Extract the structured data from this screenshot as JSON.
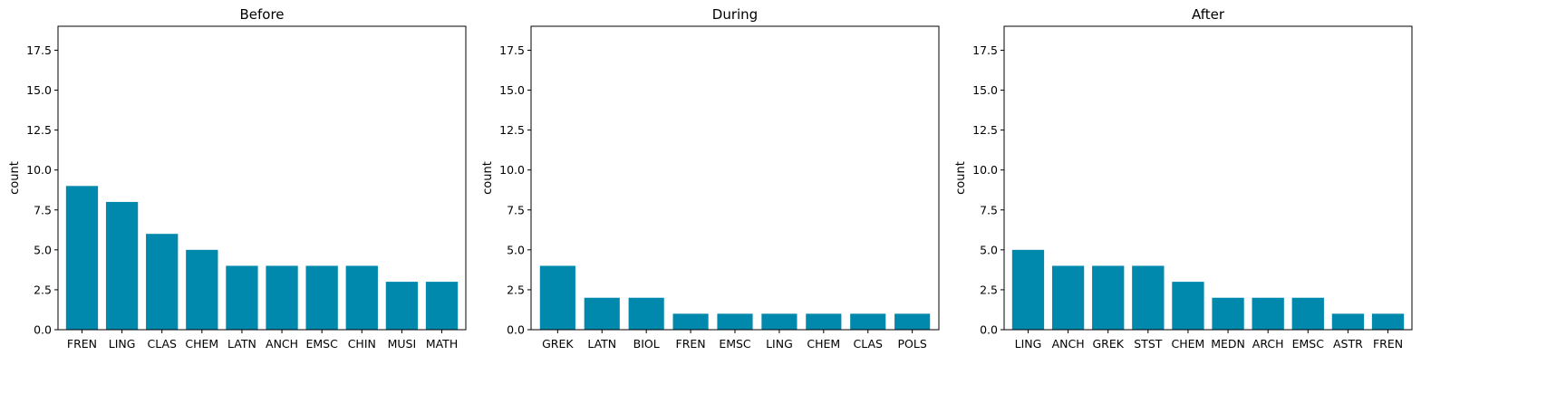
{
  "colors": {
    "bar": "#0088ad",
    "axis": "#000000",
    "background": "#ffffff"
  },
  "chart_data": [
    {
      "type": "bar",
      "title": "Before",
      "xlabel": "",
      "ylabel": "count",
      "ylim": [
        0,
        19
      ],
      "yticks": [
        "0.0",
        "2.5",
        "5.0",
        "7.5",
        "10.0",
        "12.5",
        "15.0",
        "17.5"
      ],
      "grid": false,
      "categories": [
        "FREN",
        "LING",
        "CLAS",
        "CHEM",
        "LATN",
        "ANCH",
        "EMSC",
        "CHIN",
        "MUSI",
        "MATH"
      ],
      "values": [
        9,
        8,
        6,
        5,
        4,
        4,
        4,
        4,
        3,
        3
      ]
    },
    {
      "type": "bar",
      "title": "During",
      "xlabel": "",
      "ylabel": "count",
      "ylim": [
        0,
        19
      ],
      "yticks": [
        "0.0",
        "2.5",
        "5.0",
        "7.5",
        "10.0",
        "12.5",
        "15.0",
        "17.5"
      ],
      "grid": false,
      "categories": [
        "GREK",
        "LATN",
        "BIOL",
        "FREN",
        "EMSC",
        "LING",
        "CHEM",
        "CLAS",
        "POLS"
      ],
      "values": [
        4,
        2,
        2,
        1,
        1,
        1,
        1,
        1,
        1
      ]
    },
    {
      "type": "bar",
      "title": "After",
      "xlabel": "",
      "ylabel": "count",
      "ylim": [
        0,
        19
      ],
      "yticks": [
        "0.0",
        "2.5",
        "5.0",
        "7.5",
        "10.0",
        "12.5",
        "15.0",
        "17.5"
      ],
      "grid": false,
      "categories": [
        "LING",
        "ANCH",
        "GREK",
        "STST",
        "CHEM",
        "MEDN",
        "ARCH",
        "EMSC",
        "ASTR",
        "FREN"
      ],
      "values": [
        5,
        4,
        4,
        4,
        3,
        2,
        2,
        2,
        1,
        1
      ]
    }
  ]
}
